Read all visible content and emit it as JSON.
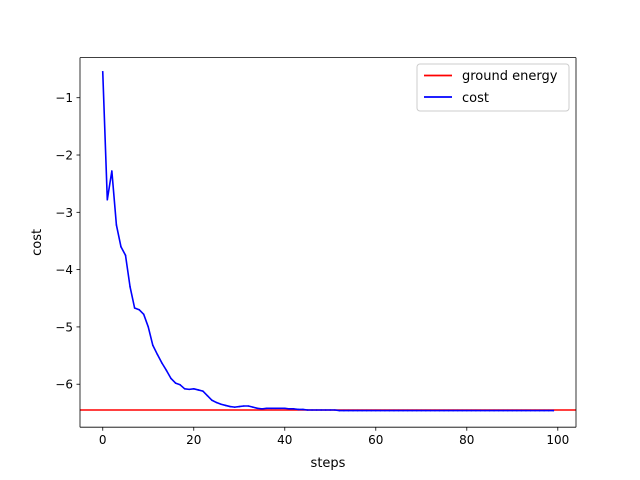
{
  "chart_data": {
    "type": "line",
    "xlabel": "steps",
    "ylabel": "cost",
    "xlim": [
      -5,
      104
    ],
    "ylim": [
      -6.75,
      -0.3
    ],
    "xticks": [
      0,
      20,
      40,
      60,
      80,
      100
    ],
    "yticks": [
      -1,
      -2,
      -3,
      -4,
      -5,
      -6
    ],
    "grid": false,
    "legend_position": "top-right",
    "series": [
      {
        "name": "ground energy",
        "kind": "hline",
        "color": "#ff0000",
        "value": -6.45
      },
      {
        "name": "cost",
        "kind": "line",
        "color": "#0000ff",
        "x": [
          0,
          1,
          2,
          3,
          4,
          5,
          6,
          7,
          8,
          9,
          10,
          11,
          12,
          13,
          14,
          15,
          16,
          17,
          18,
          19,
          20,
          21,
          22,
          23,
          24,
          25,
          26,
          27,
          28,
          29,
          30,
          31,
          32,
          33,
          34,
          35,
          36,
          37,
          38,
          39,
          40,
          41,
          42,
          43,
          44,
          45,
          46,
          47,
          48,
          49,
          50,
          51,
          52,
          53,
          54,
          55,
          56,
          57,
          58,
          59,
          60,
          61,
          62,
          63,
          64,
          65,
          66,
          67,
          68,
          69,
          70,
          71,
          72,
          73,
          74,
          75,
          76,
          77,
          78,
          79,
          80,
          81,
          82,
          83,
          84,
          85,
          86,
          87,
          88,
          89,
          90,
          91,
          92,
          93,
          94,
          95,
          96,
          97,
          98,
          99
        ],
        "y": [
          -0.55,
          -2.78,
          -2.28,
          -3.22,
          -3.6,
          -3.75,
          -4.3,
          -4.67,
          -4.7,
          -4.78,
          -5.0,
          -5.32,
          -5.48,
          -5.63,
          -5.76,
          -5.9,
          -5.98,
          -6.01,
          -6.08,
          -6.09,
          -6.08,
          -6.1,
          -6.12,
          -6.2,
          -6.28,
          -6.32,
          -6.35,
          -6.37,
          -6.39,
          -6.4,
          -6.39,
          -6.38,
          -6.38,
          -6.4,
          -6.42,
          -6.43,
          -6.42,
          -6.42,
          -6.42,
          -6.42,
          -6.42,
          -6.43,
          -6.43,
          -6.44,
          -6.44,
          -6.45,
          -6.45,
          -6.45,
          -6.45,
          -6.45,
          -6.45,
          -6.45,
          -6.46,
          -6.46,
          -6.46,
          -6.46,
          -6.46,
          -6.46,
          -6.46,
          -6.46,
          -6.46,
          -6.46,
          -6.46,
          -6.46,
          -6.46,
          -6.46,
          -6.46,
          -6.46,
          -6.46,
          -6.46,
          -6.46,
          -6.46,
          -6.46,
          -6.46,
          -6.46,
          -6.46,
          -6.46,
          -6.46,
          -6.46,
          -6.46,
          -6.46,
          -6.46,
          -6.46,
          -6.46,
          -6.46,
          -6.46,
          -6.46,
          -6.46,
          -6.46,
          -6.46,
          -6.46,
          -6.46,
          -6.46,
          -6.46,
          -6.46,
          -6.46,
          -6.46,
          -6.46,
          -6.46,
          -6.46
        ]
      }
    ]
  }
}
